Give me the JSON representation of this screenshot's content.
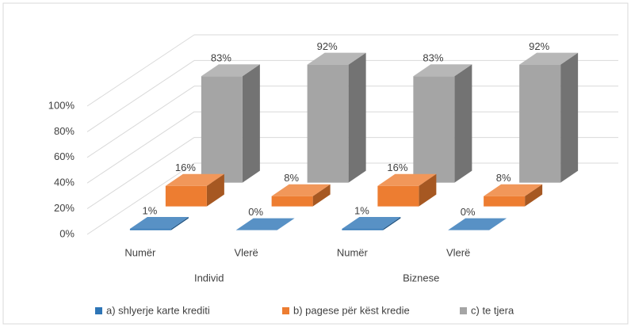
{
  "chart_data": {
    "type": "bar3d",
    "categories": [
      "Numër",
      "Vlerë",
      "Numër",
      "Vlerë"
    ],
    "group_labels": [
      "Individ",
      "Biznese"
    ],
    "series": [
      {
        "name": "a) shlyerje karte krediti",
        "color": "#2e75b6",
        "values": [
          1,
          0,
          1,
          0
        ],
        "value_labels": [
          "1%",
          "0%",
          "1%",
          "0%"
        ]
      },
      {
        "name": "b) pagese për këst kredie",
        "color": "#ed7d31",
        "values": [
          16,
          8,
          16,
          8
        ],
        "value_labels": [
          "16%",
          "8%",
          "16%",
          "8%"
        ]
      },
      {
        "name": "c) te tjera",
        "color": "#a5a5a5",
        "values": [
          83,
          92,
          83,
          92
        ],
        "value_labels": [
          "83%",
          "92%",
          "83%",
          "92%"
        ]
      }
    ],
    "ylim": [
      0,
      100
    ],
    "yticks": [
      {
        "value": 0,
        "label": "0%"
      },
      {
        "value": 20,
        "label": "20%"
      },
      {
        "value": 40,
        "label": "40%"
      },
      {
        "value": 60,
        "label": "60%"
      },
      {
        "value": 80,
        "label": "80%"
      },
      {
        "value": 100,
        "label": "100%"
      }
    ],
    "grid": true,
    "legend": "bottom"
  }
}
